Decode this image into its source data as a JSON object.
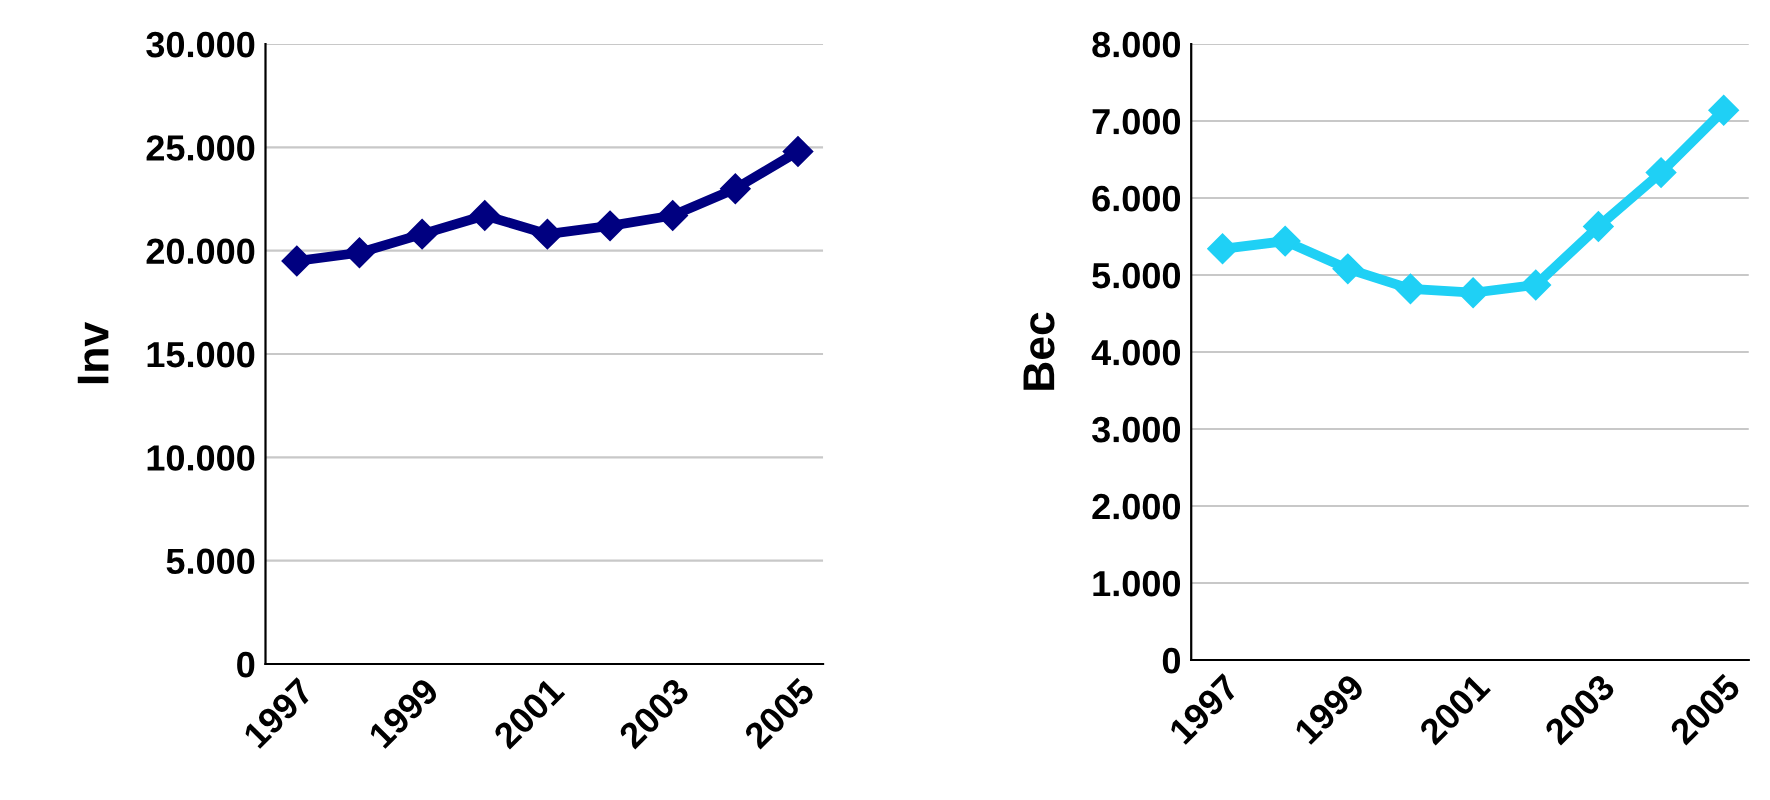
{
  "chart_data": [
    {
      "type": "line",
      "ylabel": "Inv",
      "categories": [
        "1997",
        null,
        "1999",
        null,
        "2001",
        null,
        "2003",
        null,
        "2005"
      ],
      "series": [
        {
          "color": "#000080",
          "values": [
            19500,
            19900,
            20800,
            21700,
            20800,
            21200,
            21700,
            23000,
            24800
          ]
        }
      ],
      "ylim": [
        0,
        30000
      ],
      "yticks": [
        {
          "value": 0,
          "label": "0"
        },
        {
          "value": 5000,
          "label": "5.000"
        },
        {
          "value": 10000,
          "label": "10.000"
        },
        {
          "value": 15000,
          "label": "15.000"
        },
        {
          "value": 20000,
          "label": "20.000"
        },
        {
          "value": 25000,
          "label": "25.000"
        },
        {
          "value": 30000,
          "label": "30.000"
        }
      ],
      "grid": "y",
      "marker": "diamond",
      "line_style": "solid"
    },
    {
      "type": "line",
      "ylabel": "Bec",
      "categories": [
        "1997",
        null,
        "1999",
        null,
        "2001",
        null,
        "2003",
        null,
        "2005"
      ],
      "series": [
        {
          "color": "#1fd0f5",
          "values": [
            5340,
            5440,
            5080,
            4820,
            4770,
            4870,
            5630,
            6330,
            7140
          ]
        }
      ],
      "ylim": [
        0,
        8000
      ],
      "yticks": [
        {
          "value": 0,
          "label": "0"
        },
        {
          "value": 1000,
          "label": "1.000"
        },
        {
          "value": 2000,
          "label": "2.000"
        },
        {
          "value": 3000,
          "label": "3.000"
        },
        {
          "value": 4000,
          "label": "4.000"
        },
        {
          "value": 5000,
          "label": "5.000"
        },
        {
          "value": 6000,
          "label": "6.000"
        },
        {
          "value": 7000,
          "label": "7.000"
        },
        {
          "value": 8000,
          "label": "8.000"
        }
      ],
      "grid": "y",
      "marker": "diamond",
      "line_style": "solid"
    }
  ]
}
